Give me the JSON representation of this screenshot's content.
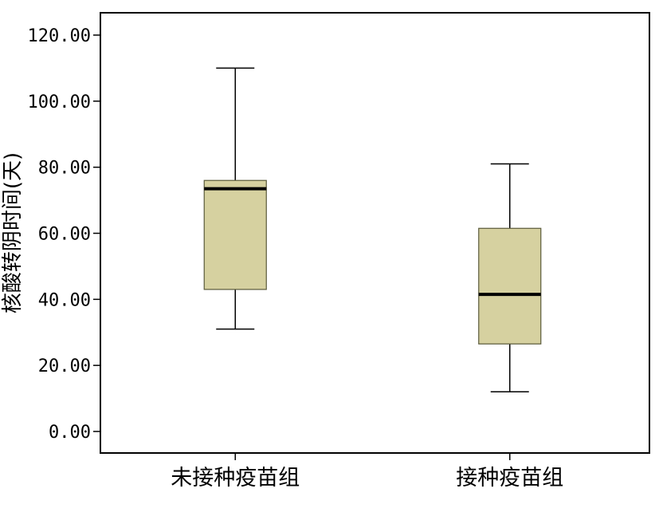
{
  "chart_data": {
    "type": "box",
    "ylabel": "核酸转阴时间(天)",
    "ylim": [
      0,
      120
    ],
    "yticks": [
      0,
      20,
      40,
      60,
      80,
      100,
      120
    ],
    "ytick_labels": [
      "0.00",
      "20.00",
      "40.00",
      "60.00",
      "80.00",
      "100.00",
      "120.00"
    ],
    "categories": [
      "未接种疫苗组",
      "接种疫苗组"
    ],
    "boxes": [
      {
        "category": "未接种疫苗组",
        "min": 31,
        "q1": 43,
        "median": 73.5,
        "q3": 76,
        "max": 110
      },
      {
        "category": "接种疫苗组",
        "min": 12,
        "q1": 26.5,
        "median": 41.5,
        "q3": 61.5,
        "max": 81
      }
    ],
    "box_fill": "#D6D1A0",
    "grid": false
  }
}
